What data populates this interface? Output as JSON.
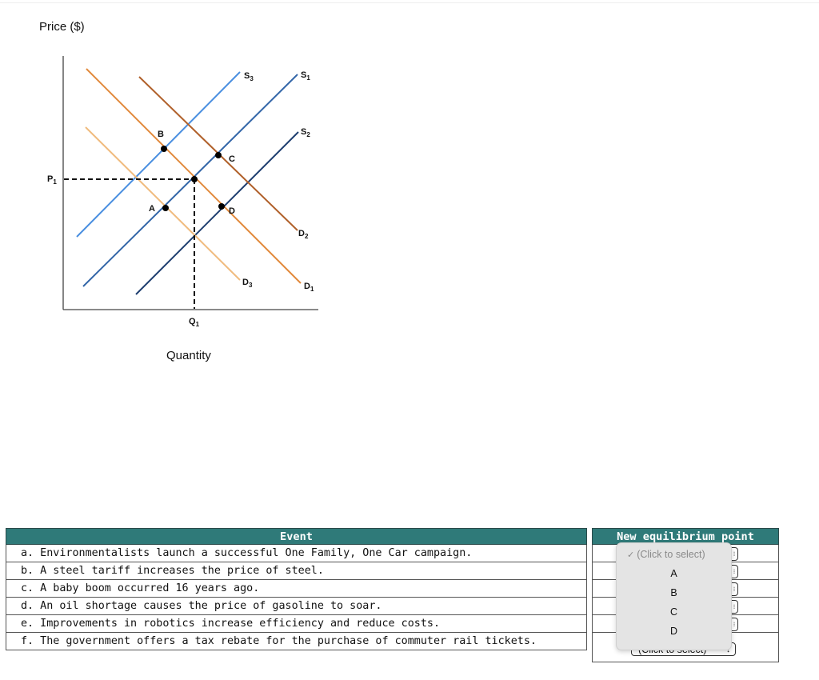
{
  "graph": {
    "y_axis_label": "Price ($)",
    "x_axis_label": "Quantity",
    "price_label": {
      "main": "P",
      "sub": "1"
    },
    "quantity_label": {
      "main": "Q",
      "sub": "1"
    },
    "curve_labels": {
      "s3": {
        "main": "S",
        "sub": "3"
      },
      "s1": {
        "main": "S",
        "sub": "1"
      },
      "s2": {
        "main": "S",
        "sub": "2"
      },
      "d2": {
        "main": "D",
        "sub": "2"
      },
      "d3": {
        "main": "D",
        "sub": "3"
      },
      "d1": {
        "main": "D",
        "sub": "1"
      }
    },
    "points": {
      "a": "A",
      "b": "B",
      "c": "C",
      "d": "D"
    },
    "colors": {
      "s3": "#4a8fe0",
      "s1": "#3366a8",
      "s2": "#1f3f70",
      "d1": "#e28a3c",
      "d2": "#b0602a",
      "d3": "#f0bb7e",
      "point": "#000000"
    }
  },
  "event_table": {
    "header": "Event",
    "rows": [
      "a. Environmentalists launch a successful One Family, One Car campaign.",
      "b. A steel tariff increases the price of steel.",
      "c. A baby boom occurred 16 years ago.",
      "d. An oil shortage causes the price of gasoline to soar.",
      "e. Improvements in robotics increase efficiency and reduce costs.",
      "f. The government offers a tax rebate for the purchase of commuter rail tickets."
    ]
  },
  "point_table": {
    "header": "New equilibrium point",
    "select_placeholder": "(Click to select)",
    "select_arrow": "↕"
  },
  "dropdown": {
    "check": "✓",
    "options": [
      "(Click to select)",
      "A",
      "B",
      "C",
      "D"
    ],
    "selected_index": 0
  }
}
